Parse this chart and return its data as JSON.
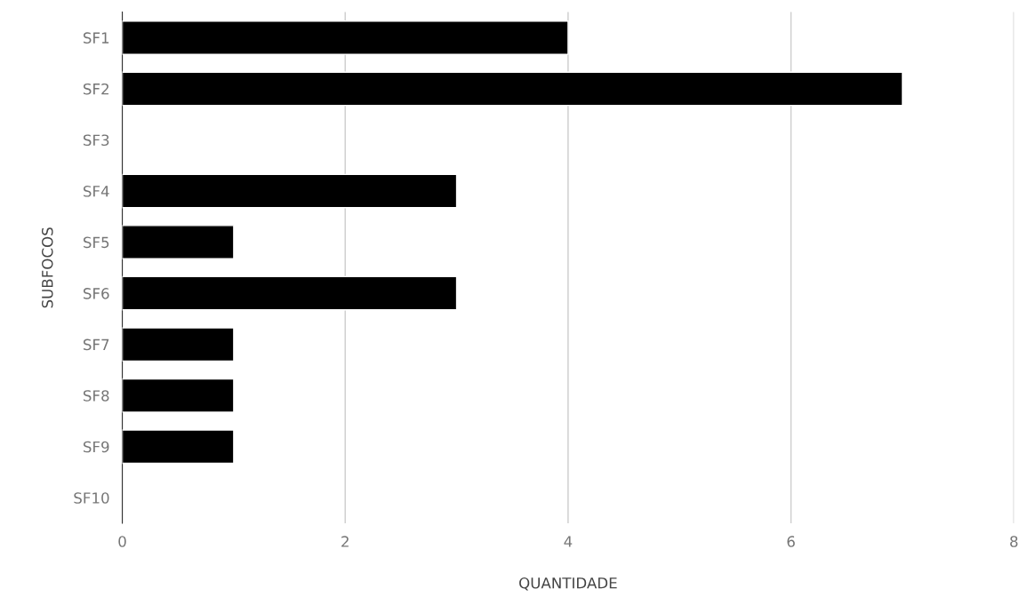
{
  "chart_data": {
    "type": "bar",
    "orientation": "horizontal",
    "xlabel": "QUANTIDADE",
    "ylabel": "SUBFOCOS",
    "categories": [
      "SF1",
      "SF2",
      "SF3",
      "SF4",
      "SF5",
      "SF6",
      "SF7",
      "SF8",
      "SF9",
      "SF10"
    ],
    "values": [
      4,
      7,
      0,
      3,
      1,
      3,
      1,
      1,
      1,
      0
    ],
    "color": "#000000",
    "xlim": [
      0,
      8
    ],
    "xticks": [
      0,
      2,
      4,
      6,
      8
    ],
    "grid": "x"
  }
}
